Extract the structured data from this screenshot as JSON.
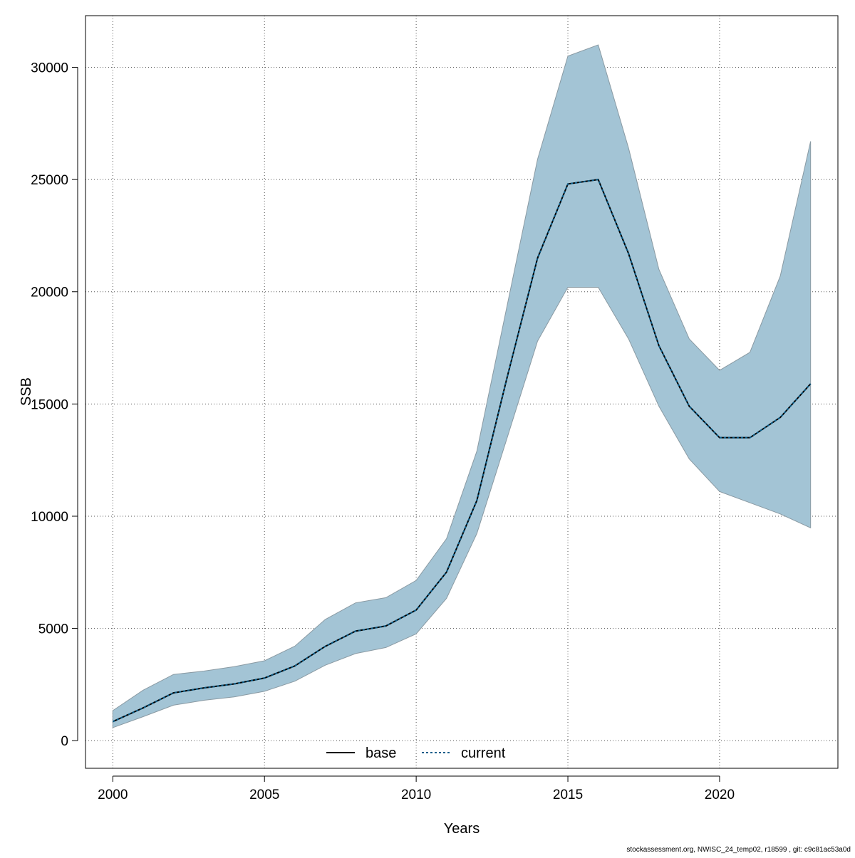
{
  "chart_data": {
    "type": "line",
    "xlabel": "Years",
    "ylabel": "SSB",
    "xlim": [
      1999.1,
      2023.9
    ],
    "ylim": [
      -1230,
      32300
    ],
    "x_ticks": [
      2000,
      2005,
      2010,
      2015,
      2020
    ],
    "y_ticks": [
      0,
      5000,
      10000,
      15000,
      20000,
      25000,
      30000
    ],
    "grid": true,
    "legend_position": "bottom-center",
    "colors": {
      "band_fill": "#a3c4d5",
      "band_stroke": "#8a9aa3",
      "base_line": "#000000",
      "current_line": "#0b5e8a",
      "grid": "#555555",
      "axis": "#000000"
    },
    "years": [
      2000,
      2001,
      2002,
      2003,
      2004,
      2005,
      2006,
      2007,
      2008,
      2009,
      2010,
      2011,
      2012,
      2013,
      2014,
      2015,
      2016,
      2017,
      2018,
      2019,
      2020,
      2021,
      2022,
      2023
    ],
    "series": [
      {
        "name": "base",
        "style": "solid",
        "values": [
          850,
          1460,
          2130,
          2350,
          2530,
          2790,
          3330,
          4200,
          4880,
          5110,
          5820,
          7510,
          10700,
          16200,
          21500,
          24800,
          25000,
          21700,
          17600,
          14900,
          13500,
          13500,
          14400,
          15900
        ]
      },
      {
        "name": "current",
        "style": "dotted",
        "values": [
          850,
          1460,
          2130,
          2350,
          2530,
          2790,
          3330,
          4200,
          4880,
          5110,
          5820,
          7510,
          10700,
          16200,
          21500,
          24800,
          25000,
          21700,
          17600,
          14900,
          13500,
          13500,
          14400,
          15900
        ]
      }
    ],
    "interval": {
      "upper": [
        1340,
        2250,
        2950,
        3100,
        3300,
        3560,
        4210,
        5400,
        6140,
        6370,
        7140,
        9000,
        12900,
        19400,
        25900,
        30500,
        31000,
        26400,
        21000,
        17900,
        16500,
        17300,
        20700,
        26700
      ],
      "lower": [
        580,
        1070,
        1580,
        1800,
        1950,
        2200,
        2650,
        3360,
        3880,
        4150,
        4760,
        6340,
        9230,
        13500,
        17800,
        20200,
        20200,
        17900,
        14900,
        12550,
        11100,
        10600,
        10100,
        9480
      ]
    },
    "legend": [
      {
        "label": "base",
        "style": "solid"
      },
      {
        "label": "current",
        "style": "dotted"
      }
    ]
  },
  "footer": {
    "source_note": "stockassessment.org, NWISC_24_temp02, r18599 , git: c9c81ac53a0d"
  }
}
